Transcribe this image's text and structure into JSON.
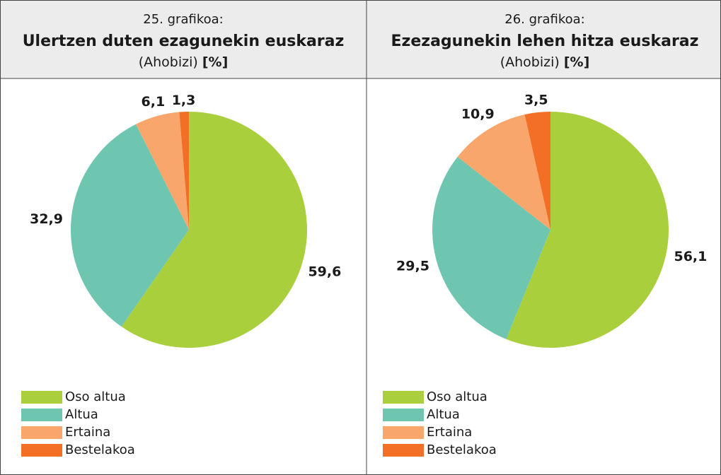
{
  "chart_data": [
    {
      "type": "pie",
      "label": "25. grafikoa:",
      "title": "Ulertzen duten ezagunekin euskaraz",
      "subtitle": "(Ahobizi)",
      "unit": "[%]",
      "categories": [
        "Oso altua",
        "Altua",
        "Ertaina",
        "Bestelakoa"
      ],
      "values": [
        59.6,
        32.9,
        6.1,
        1.3
      ],
      "value_labels": [
        "59,6",
        "32,9",
        "6,1",
        "1,3"
      ],
      "colors": [
        "#a9cf3c",
        "#6fc6b0",
        "#f8a66c",
        "#f26f25"
      ]
    },
    {
      "type": "pie",
      "label": "26. grafikoa:",
      "title": "Ezezagunekin lehen hitza euskaraz",
      "subtitle": "(Ahobizi)",
      "unit": "[%]",
      "categories": [
        "Oso altua",
        "Altua",
        "Ertaina",
        "Bestelakoa"
      ],
      "values": [
        56.1,
        29.5,
        10.9,
        3.5
      ],
      "value_labels": [
        "56,1",
        "29,5",
        "10,9",
        "3,5"
      ],
      "colors": [
        "#a9cf3c",
        "#6fc6b0",
        "#f8a66c",
        "#f26f25"
      ]
    }
  ]
}
